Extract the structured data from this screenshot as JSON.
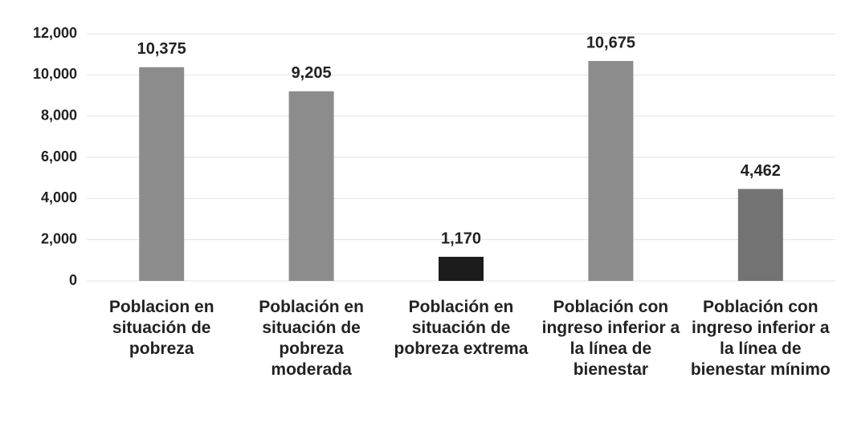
{
  "chart_data": {
    "type": "bar",
    "categories": [
      "Poblacion en situación de pobreza",
      "Población en situación de pobreza moderada",
      "Población en situación de pobreza extrema",
      "Población con ingreso inferior a la línea de bienestar",
      "Población con ingreso inferior a la línea de bienestar mínimo"
    ],
    "values": [
      10375,
      9205,
      1170,
      10675,
      4462
    ],
    "value_labels": [
      "10,375",
      "9,205",
      "1,170",
      "10,675",
      "4,462"
    ],
    "colors": [
      "#8c8c8c",
      "#8c8c8c",
      "#1c1c1c",
      "#8c8c8c",
      "#737373"
    ],
    "ylim": [
      0,
      12000
    ],
    "yticks": [
      0,
      {
        "value": 2000,
        "label": "2,000"
      },
      {
        "value": 4000,
        "label": "4,000"
      },
      {
        "value": 6000,
        "label": "6,000"
      },
      {
        "value": 8000,
        "label": "8,000"
      },
      {
        "value": 10000,
        "label": "10,000"
      },
      {
        "value": 12000,
        "label": "12,000"
      }
    ],
    "grid": true
  }
}
